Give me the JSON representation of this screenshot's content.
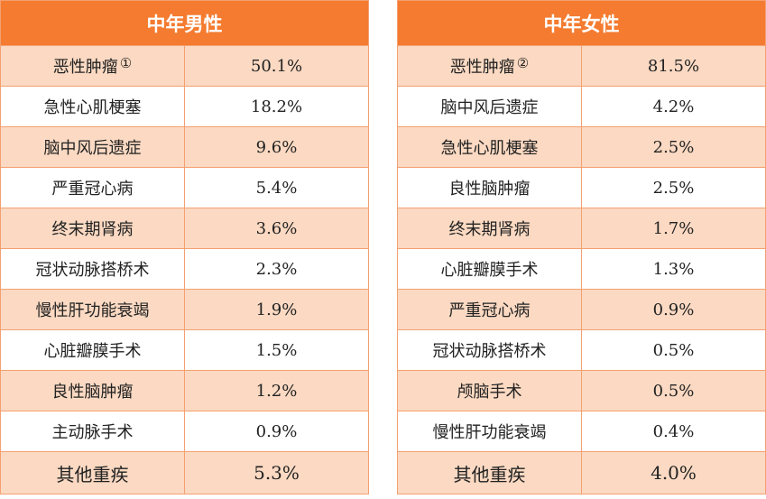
{
  "male": {
    "title": "中年男性",
    "rows": [
      {
        "name": "恶性肿瘤",
        "note": "①",
        "pct": "50.1%"
      },
      {
        "name": "急性心肌梗塞",
        "pct": "18.2%"
      },
      {
        "name": "脑中风后遗症",
        "pct": "9.6%"
      },
      {
        "name": "严重冠心病",
        "pct": "5.4%"
      },
      {
        "name": "终末期肾病",
        "pct": "3.6%"
      },
      {
        "name": "冠状动脉搭桥术",
        "pct": "2.3%"
      },
      {
        "name": "慢性肝功能衰竭",
        "pct": "1.9%"
      },
      {
        "name": "心脏瓣膜手术",
        "pct": "1.5%"
      },
      {
        "name": "良性脑肿瘤",
        "pct": "1.2%"
      },
      {
        "name": "主动脉手术",
        "pct": "0.9%"
      },
      {
        "name": "其他重疾",
        "pct": "5.3%"
      }
    ]
  },
  "female": {
    "title": "中年女性",
    "rows": [
      {
        "name": "恶性肿瘤",
        "note": "②",
        "pct": "81.5%"
      },
      {
        "name": "脑中风后遗症",
        "pct": "4.2%"
      },
      {
        "name": "急性心肌梗塞",
        "pct": "2.5%"
      },
      {
        "name": "良性脑肿瘤",
        "pct": "2.5%"
      },
      {
        "name": "终末期肾病",
        "pct": "1.7%"
      },
      {
        "name": "心脏瓣膜手术",
        "pct": "1.3%"
      },
      {
        "name": "严重冠心病",
        "pct": "0.9%"
      },
      {
        "name": "冠状动脉搭桥术",
        "pct": "0.5%"
      },
      {
        "name": "颅脑手术",
        "pct": "0.5%"
      },
      {
        "name": "慢性肝功能衰竭",
        "pct": "0.4%"
      },
      {
        "name": "其他重疾",
        "pct": "4.0%"
      }
    ]
  },
  "colors": {
    "header": "#f47b30",
    "stripe": "#fbd9c2",
    "border": "#f4a070"
  }
}
